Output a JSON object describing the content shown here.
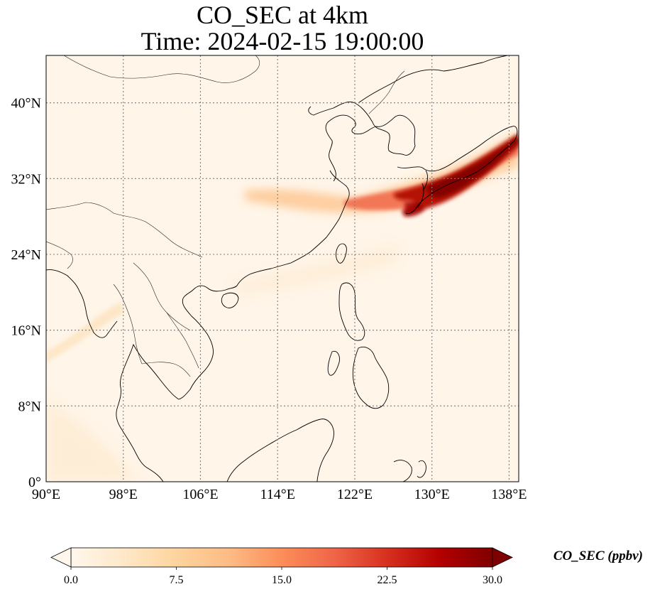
{
  "title": {
    "line1": "CO_SEC at 4km",
    "line2": "Time: 2024-02-15 19:00:00"
  },
  "map": {
    "lon_range": [
      90,
      139
    ],
    "lat_range": [
      0,
      45
    ],
    "lon_ticks": [
      {
        "value": 90,
        "label": "90°E"
      },
      {
        "value": 98,
        "label": "98°E"
      },
      {
        "value": 106,
        "label": "106°E"
      },
      {
        "value": 114,
        "label": "114°E"
      },
      {
        "value": 122,
        "label": "122°E"
      },
      {
        "value": 130,
        "label": "130°E"
      },
      {
        "value": 138,
        "label": "138°E"
      }
    ],
    "lat_ticks": [
      {
        "value": 0,
        "label": "0°"
      },
      {
        "value": 8,
        "label": "8°N"
      },
      {
        "value": 16,
        "label": "16°N"
      },
      {
        "value": 24,
        "label": "24°N"
      },
      {
        "value": 32,
        "label": "32°N"
      },
      {
        "value": 40,
        "label": "40°N"
      }
    ],
    "gridlines": true,
    "background_color": "#fff5e8"
  },
  "colorbar": {
    "label": "CO_SEC (ppbv)",
    "cmap": "OrRd",
    "min": 0.0,
    "max": 30.0,
    "extend": "both",
    "ticks": [
      {
        "value": 0.0,
        "label": "0.0"
      },
      {
        "value": 7.5,
        "label": "7.5"
      },
      {
        "value": 15.0,
        "label": "15.0"
      },
      {
        "value": 22.5,
        "label": "22.5"
      },
      {
        "value": 30.0,
        "label": "30.0"
      }
    ],
    "colors": [
      "#fff7ec",
      "#fee8c8",
      "#fdd49e",
      "#fdbb84",
      "#fc8d59",
      "#ef6548",
      "#d7301f",
      "#b30000",
      "#7f0000"
    ]
  }
}
